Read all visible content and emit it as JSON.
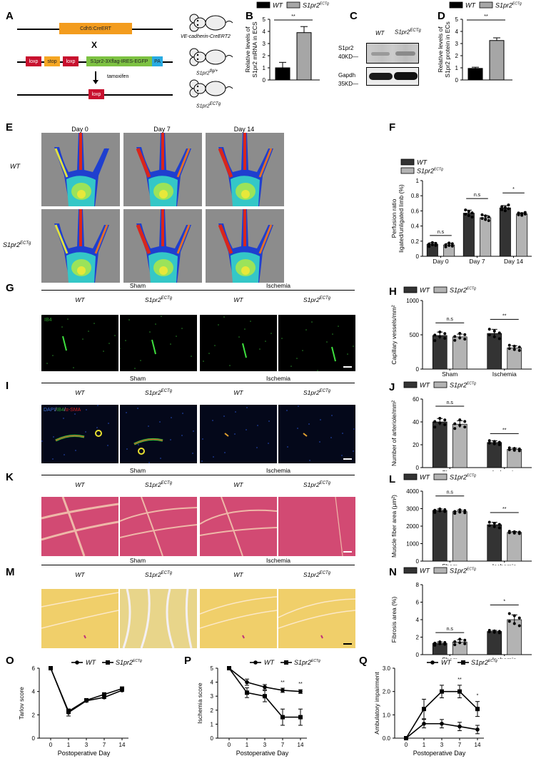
{
  "figure": {
    "panel_letters": [
      "A",
      "B",
      "C",
      "D",
      "E",
      "F",
      "G",
      "H",
      "I",
      "J",
      "K",
      "L",
      "M",
      "N",
      "O",
      "P",
      "Q"
    ],
    "groups": {
      "wt": "WT",
      "tg": "S1pr2",
      "tg_sup": "ECTg"
    },
    "colors": {
      "wt_bar": "#000000",
      "tg_bar": "#a6a6a6",
      "wt_bar_dark": "#333333",
      "tg_bar_light": "#b3b3b3",
      "cdh5": "#f39c1e",
      "loxp": "#c8102e",
      "stop": "#f5a623",
      "s1pr2_cassette": "#7dc242",
      "pa": "#29abe2"
    }
  },
  "panelA": {
    "construct1": {
      "label": "Cdh5:CreERT"
    },
    "cross_symbol": "X",
    "construct2": {
      "loxp1": "loxp",
      "stop": "stop",
      "loxp2": "loxp",
      "cassette": "S1pr2-3Xflag-IRES-EGFP",
      "pa": "PA"
    },
    "arrow_label": "tamoxifen",
    "construct3": {
      "loxp": "loxp"
    },
    "mice": [
      {
        "label": "VE-cadherin-CreERT2",
        "sup": ""
      },
      {
        "label": "S1pr2",
        "sup": "flg/+"
      },
      {
        "label": "S1pr2",
        "sup": "ECTg"
      }
    ]
  },
  "panelC": {
    "col_labels": [
      "WT",
      "S1pr2"
    ],
    "col_sup": "ECTg",
    "rows": [
      {
        "name": "S1pr2",
        "size": "40KD—"
      },
      {
        "name": "Gapdh",
        "size": "35KD—"
      }
    ]
  },
  "panelE": {
    "columns": [
      "Day 0",
      "Day 7",
      "Day 14"
    ],
    "rows": [
      "WT",
      "S1pr2"
    ],
    "row_sup": "ECTg"
  },
  "histology": {
    "group_labels": [
      "Sham",
      "Ischemia"
    ],
    "col_labels": [
      "WT",
      "S1pr2",
      "WT",
      "S1pr2"
    ],
    "col_sups": [
      "",
      "ECTg",
      "",
      "ECTg"
    ],
    "G_stain": "IB4",
    "I_stain": {
      "dapi": "DAPI",
      "ib4": "IB4",
      "sma": "α-SMA",
      "sep": "/"
    }
  },
  "chart_data": [
    {
      "panel": "B",
      "type": "bar",
      "title": "",
      "ylabel": "Relative levels of S1pr2 mRNA in ECS",
      "xlabel": "",
      "categories": [
        "WT",
        "S1pr2ECTg"
      ],
      "values": [
        1.0,
        3.9
      ],
      "errors": [
        0.45,
        0.5
      ],
      "ylim": [
        0,
        5
      ],
      "yticks": [
        0,
        1,
        2,
        3,
        4,
        5
      ],
      "significance": [
        {
          "between": [
            0,
            1
          ],
          "label": "**"
        }
      ],
      "legend": [
        "WT",
        "S1pr2ECTg"
      ],
      "legend_position": "top"
    },
    {
      "panel": "D",
      "type": "bar",
      "title": "",
      "ylabel": "Relative levels of S1pr2 protein in ECs",
      "xlabel": "",
      "categories": [
        "WT",
        "S1pr2ECTg"
      ],
      "values": [
        0.95,
        3.25
      ],
      "errors": [
        0.1,
        0.22
      ],
      "ylim": [
        0,
        5
      ],
      "yticks": [
        0,
        1,
        2,
        3,
        4,
        5
      ],
      "significance": [
        {
          "between": [
            0,
            1
          ],
          "label": "**"
        }
      ],
      "legend": [
        "WT",
        "S1pr2ECTg"
      ],
      "legend_position": "top"
    },
    {
      "panel": "F",
      "type": "bar",
      "title": "",
      "ylabel": "Perfusion ratio ligated/unligated limb (%)",
      "xlabel": "",
      "categories": [
        "Day 0",
        "Day 7",
        "Day 14"
      ],
      "series": [
        {
          "name": "WT",
          "values": [
            0.16,
            0.57,
            0.64
          ],
          "errors": [
            0.02,
            0.04,
            0.03
          ]
        },
        {
          "name": "S1pr2ECTg",
          "values": [
            0.15,
            0.51,
            0.56
          ],
          "errors": [
            0.02,
            0.03,
            0.015
          ]
        }
      ],
      "ylim": [
        0,
        1.0
      ],
      "yticks": [
        0,
        0.2,
        0.4,
        0.6,
        0.8,
        1.0
      ],
      "significance": [
        "n.s",
        "n.s",
        "*"
      ],
      "legend_position": "top-left"
    },
    {
      "panel": "H",
      "type": "bar",
      "ylabel": "Capillary vessels/mm²",
      "categories": [
        "Sham",
        "Ischemia"
      ],
      "series": [
        {
          "name": "WT",
          "values": [
            490,
            520
          ],
          "errors": [
            50,
            60
          ]
        },
        {
          "name": "S1pr2ECTg",
          "values": [
            470,
            310
          ],
          "errors": [
            40,
            30
          ]
        }
      ],
      "ylim": [
        0,
        1000
      ],
      "yticks": [
        0,
        500,
        1000
      ],
      "significance": [
        "n.s",
        "**"
      ]
    },
    {
      "panel": "J",
      "type": "bar",
      "ylabel": "Number of arteriole/mm²",
      "categories": [
        "Sham",
        "Ischemia"
      ],
      "series": [
        {
          "name": "WT",
          "values": [
            40,
            22
          ],
          "errors": [
            3,
            1.5
          ]
        },
        {
          "name": "S1pr2ECTg",
          "values": [
            38,
            16
          ],
          "errors": [
            3,
            1
          ]
        }
      ],
      "ylim": [
        0,
        60
      ],
      "yticks": [
        0,
        20,
        40,
        60
      ],
      "significance": [
        "n.s",
        "**"
      ]
    },
    {
      "panel": "L",
      "type": "bar",
      "ylabel": "Muscle fiber area (μm²)",
      "categories": [
        "Sham",
        "Ischemia"
      ],
      "series": [
        {
          "name": "WT",
          "values": [
            2900,
            2080
          ],
          "errors": [
            80,
            140
          ]
        },
        {
          "name": "S1pr2ECTg",
          "values": [
            2830,
            1640
          ],
          "errors": [
            80,
            50
          ]
        }
      ],
      "ylim": [
        0,
        4000
      ],
      "yticks": [
        0,
        1000,
        2000,
        3000,
        4000
      ],
      "significance": [
        "n.s",
        "**"
      ]
    },
    {
      "panel": "N",
      "type": "bar",
      "ylabel": "Fibrosis area (%)",
      "categories": [
        "Sham",
        "Ischemia"
      ],
      "series": [
        {
          "name": "WT",
          "values": [
            1.3,
            2.65
          ],
          "errors": [
            0.15,
            0.12
          ]
        },
        {
          "name": "S1pr2ECTg",
          "values": [
            1.45,
            4.0
          ],
          "errors": [
            0.25,
            0.55
          ]
        }
      ],
      "ylim": [
        0,
        8
      ],
      "yticks": [
        0,
        2,
        4,
        6,
        8
      ],
      "significance": [
        "n.s",
        "*"
      ]
    },
    {
      "panel": "O",
      "type": "line",
      "xlabel": "Postoperative Day",
      "ylabel": "Tarlov score",
      "categories": [
        "0",
        "1",
        "3",
        "7",
        "14"
      ],
      "series": [
        {
          "name": "WT",
          "marker": "circle",
          "values": [
            6,
            2.2,
            3.2,
            3.5,
            4.1
          ],
          "errors": [
            0,
            0.3,
            0.1,
            0.1,
            0.1
          ]
        },
        {
          "name": "S1pr2ECTg",
          "marker": "square",
          "values": [
            6,
            2.3,
            3.25,
            3.75,
            4.25
          ],
          "errors": [
            0,
            0.2,
            0.1,
            0.1,
            0.1
          ]
        }
      ],
      "ylim": [
        0,
        6
      ],
      "yticks": [
        0,
        2,
        4,
        6
      ],
      "annotations": []
    },
    {
      "panel": "P",
      "type": "line",
      "xlabel": "Postoperative Day",
      "ylabel": "Ischemia score",
      "categories": [
        "0",
        "1",
        "3",
        "7",
        "14"
      ],
      "series": [
        {
          "name": "WT",
          "marker": "circle",
          "values": [
            5,
            4.0,
            3.65,
            3.42,
            3.33
          ],
          "errors": [
            0,
            0.22,
            0.18,
            0.15,
            0.13
          ]
        },
        {
          "name": "S1pr2ECTg",
          "marker": "square",
          "values": [
            5,
            3.25,
            3.0,
            1.5,
            1.5
          ],
          "errors": [
            0,
            0.35,
            0.4,
            0.58,
            0.58
          ]
        }
      ],
      "ylim": [
        0,
        5
      ],
      "yticks": [
        0,
        1,
        2,
        3,
        4,
        5
      ],
      "annotations": [
        {
          "x": "7",
          "label": "**"
        },
        {
          "x": "14",
          "label": "**"
        }
      ]
    },
    {
      "panel": "Q",
      "type": "line",
      "xlabel": "Postoperative Day",
      "ylabel": "Ambulatory impairment",
      "categories": [
        "0",
        "1",
        "3",
        "7",
        "14"
      ],
      "series": [
        {
          "name": "WT",
          "marker": "circle",
          "values": [
            0,
            0.62,
            0.62,
            0.5,
            0.37
          ],
          "errors": [
            0,
            0.18,
            0.18,
            0.18,
            0.18
          ]
        },
        {
          "name": "S1pr2ECTg",
          "marker": "square",
          "values": [
            0,
            1.25,
            2.0,
            2.0,
            1.25
          ],
          "errors": [
            0,
            0.42,
            0.27,
            0.27,
            0.32
          ]
        }
      ],
      "ylim": [
        0,
        3.0
      ],
      "yticks": [
        "0.0",
        "1.0",
        "2.0",
        "3.0"
      ],
      "annotations": [
        {
          "x": "7",
          "label": "**"
        },
        {
          "x": "14",
          "label": "*"
        }
      ]
    }
  ]
}
